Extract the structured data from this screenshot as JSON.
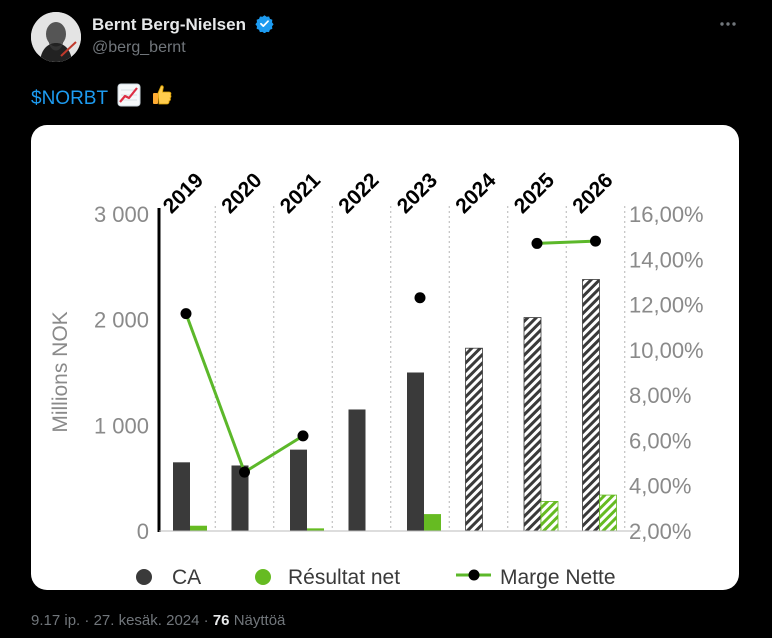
{
  "author": {
    "name": "Bernt Berg-Nielsen",
    "handle": "@berg_bernt"
  },
  "tweet": {
    "cashtag": "$NORBT",
    "emojis": [
      "chart-increasing",
      "thumbs-up"
    ]
  },
  "footer": {
    "time": "9.17 ip.",
    "sep1": "·",
    "date": "27. kesäk. 2024",
    "sep2": "·",
    "views_count": "76",
    "views_label": "Näyttöä"
  },
  "colors": {
    "accent": "#1d9bf0",
    "bar_dark": "#3a3a3a",
    "bar_green": "#66bb22",
    "line_green": "#5cb82a"
  },
  "chart_data": {
    "type": "bar",
    "categories": [
      "2019",
      "2020",
      "2021",
      "2022",
      "2023",
      "2024",
      "2025",
      "2026"
    ],
    "ylabel": "Millions NOK",
    "ylim": [
      0,
      3000
    ],
    "yticks": [
      "0",
      "1 000",
      "2 000",
      "3 000"
    ],
    "y2lim": [
      2,
      16
    ],
    "y2ticks": [
      "2,00%",
      "4,00%",
      "6,00%",
      "8,00%",
      "10,00%",
      "12,00%",
      "14,00%",
      "16,00%"
    ],
    "forecast_from": "2024",
    "series": [
      {
        "name": "CA",
        "kind": "bar",
        "values": [
          650,
          620,
          770,
          1150,
          1500,
          1730,
          2020,
          2380
        ]
      },
      {
        "name": "Résultat net",
        "kind": "bar",
        "values": [
          50,
          0,
          25,
          0,
          160,
          0,
          280,
          340
        ]
      },
      {
        "name": "Marge Nette",
        "kind": "line",
        "axis": "right",
        "values": [
          11.6,
          4.6,
          6.2,
          null,
          12.3,
          null,
          14.7,
          14.8
        ]
      }
    ],
    "legend": [
      "CA",
      "Résultat net",
      "Marge Nette"
    ],
    "legend_position": "bottom",
    "grid": "vertical-dotted"
  }
}
